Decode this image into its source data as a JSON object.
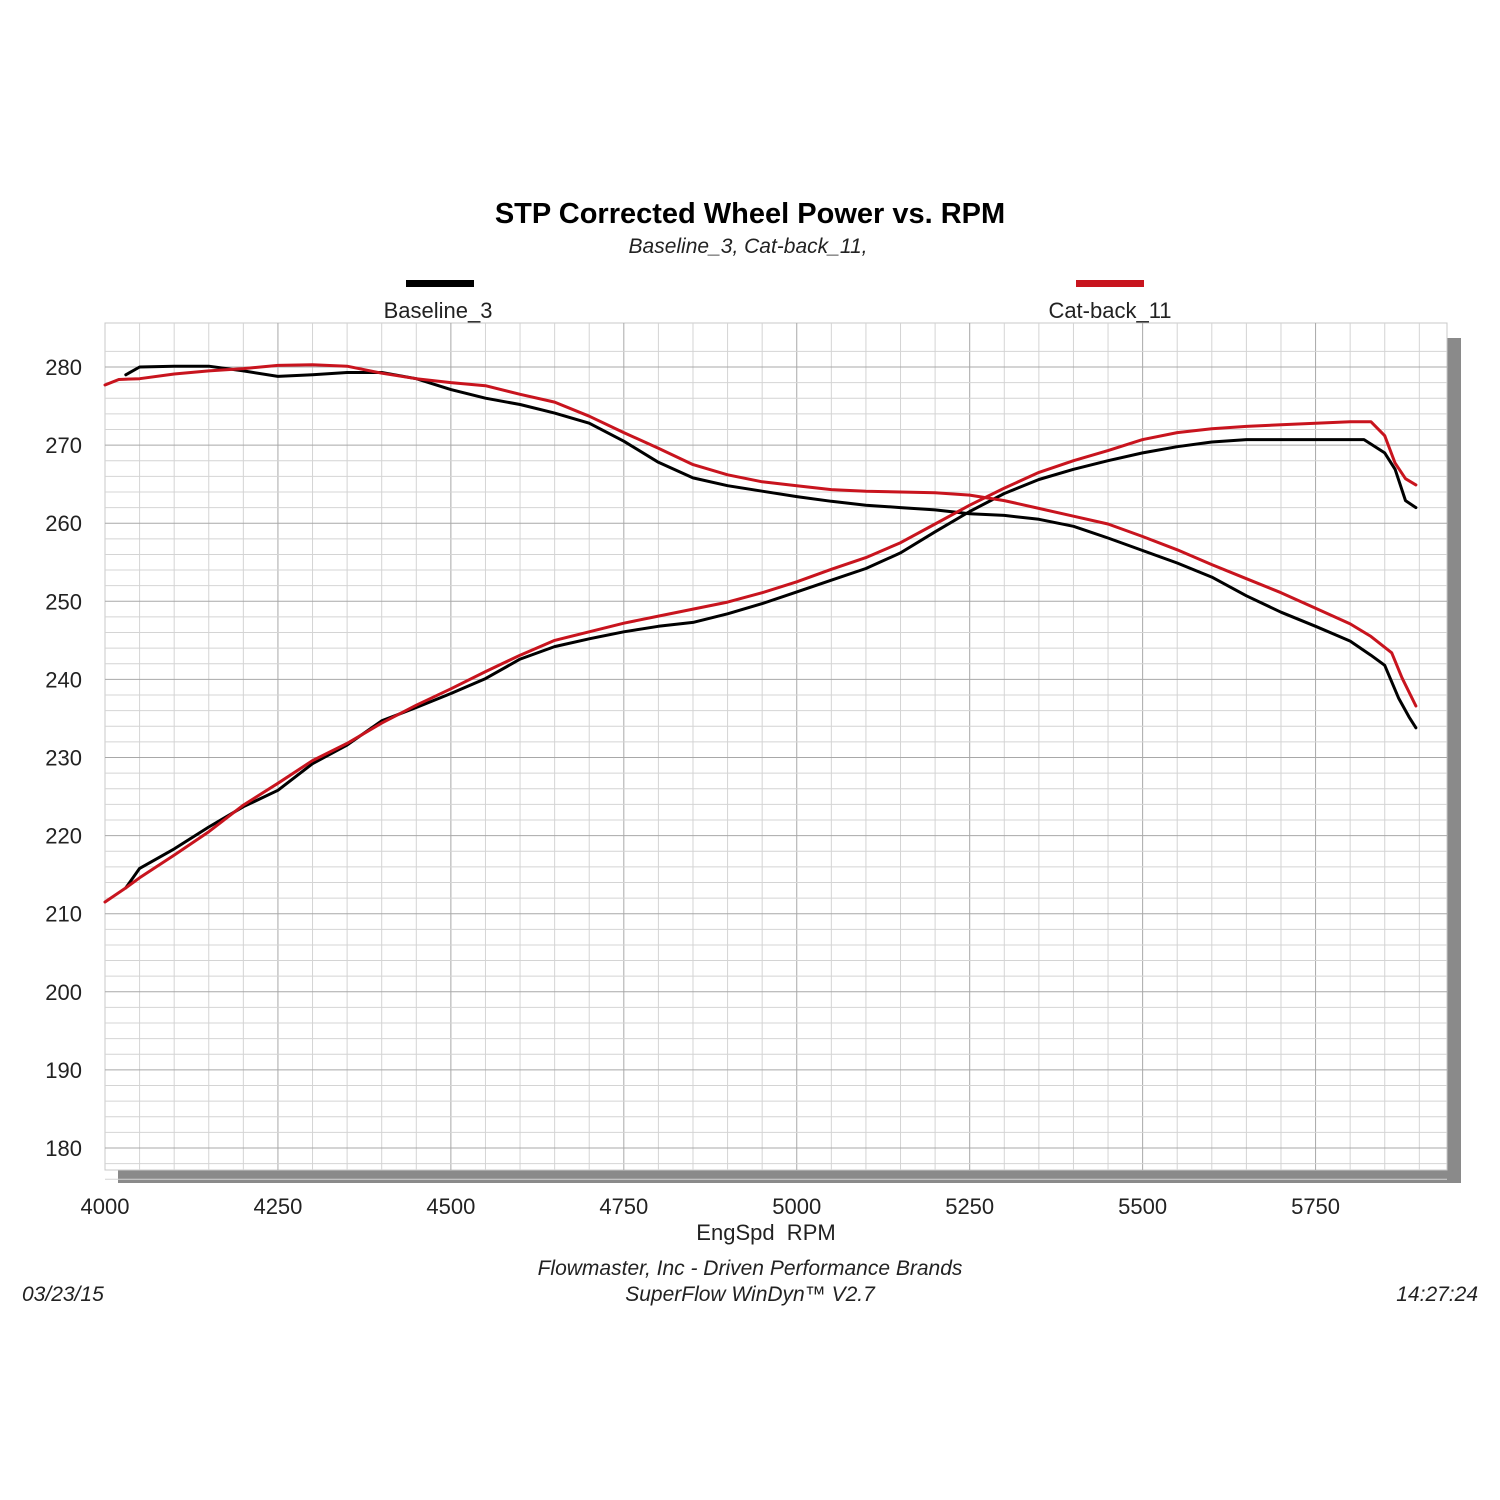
{
  "chart_data": {
    "type": "line",
    "title": "STP Corrected Wheel Power vs. RPM",
    "subtitle": "Baseline_3, Cat-back_11,",
    "xlabel": "EngSpd  RPM",
    "ylabel": "",
    "xlim": [
      4000,
      5940
    ],
    "ylim": [
      176,
      283
    ],
    "x_ticks": [
      "4000",
      "4250",
      "4500",
      "4750",
      "5000",
      "5250",
      "5500",
      "5750"
    ],
    "y_ticks": [
      "180",
      "190",
      "200",
      "210",
      "220",
      "230",
      "240",
      "250",
      "260",
      "270",
      "280"
    ],
    "grid": true,
    "legend_position": "top",
    "series": [
      {
        "name": "Baseline_3",
        "color": "#000000",
        "curves": [
          {
            "label": "power",
            "points": [
              [
                4030,
                213.3
              ],
              [
                4050,
                215.8
              ],
              [
                4100,
                218.3
              ],
              [
                4150,
                221.1
              ],
              [
                4200,
                223.7
              ],
              [
                4250,
                225.8
              ],
              [
                4300,
                229.2
              ],
              [
                4350,
                231.6
              ],
              [
                4400,
                234.7
              ],
              [
                4450,
                236.4
              ],
              [
                4500,
                238.2
              ],
              [
                4550,
                240.1
              ],
              [
                4600,
                242.6
              ],
              [
                4650,
                244.2
              ],
              [
                4700,
                245.2
              ],
              [
                4750,
                246.1
              ],
              [
                4800,
                246.8
              ],
              [
                4850,
                247.3
              ],
              [
                4900,
                248.4
              ],
              [
                4950,
                249.7
              ],
              [
                5000,
                251.2
              ],
              [
                5050,
                252.7
              ],
              [
                5100,
                254.2
              ],
              [
                5150,
                256.2
              ],
              [
                5200,
                258.9
              ],
              [
                5250,
                261.5
              ],
              [
                5300,
                263.8
              ],
              [
                5350,
                265.6
              ],
              [
                5400,
                266.9
              ],
              [
                5450,
                268.0
              ],
              [
                5500,
                269.0
              ],
              [
                5550,
                269.8
              ],
              [
                5600,
                270.4
              ],
              [
                5650,
                270.7
              ],
              [
                5700,
                270.7
              ],
              [
                5750,
                270.7
              ],
              [
                5800,
                270.7
              ],
              [
                5820,
                270.7
              ],
              [
                5850,
                269.0
              ],
              [
                5865,
                266.9
              ],
              [
                5880,
                262.9
              ],
              [
                5895,
                262.0
              ]
            ]
          },
          {
            "label": "torque",
            "points": [
              [
                4030,
                279.0
              ],
              [
                4050,
                280.0
              ],
              [
                4100,
                280.1
              ],
              [
                4150,
                280.1
              ],
              [
                4200,
                279.5
              ],
              [
                4250,
                278.8
              ],
              [
                4300,
                279.0
              ],
              [
                4350,
                279.3
              ],
              [
                4400,
                279.3
              ],
              [
                4450,
                278.5
              ],
              [
                4500,
                277.1
              ],
              [
                4550,
                276.0
              ],
              [
                4600,
                275.2
              ],
              [
                4650,
                274.1
              ],
              [
                4700,
                272.8
              ],
              [
                4750,
                270.5
              ],
              [
                4800,
                267.8
              ],
              [
                4850,
                265.8
              ],
              [
                4900,
                264.8
              ],
              [
                4950,
                264.1
              ],
              [
                5000,
                263.4
              ],
              [
                5050,
                262.8
              ],
              [
                5100,
                262.3
              ],
              [
                5150,
                262.0
              ],
              [
                5200,
                261.7
              ],
              [
                5250,
                261.2
              ],
              [
                5300,
                261.0
              ],
              [
                5350,
                260.5
              ],
              [
                5400,
                259.6
              ],
              [
                5450,
                258.1
              ],
              [
                5500,
                256.5
              ],
              [
                5550,
                254.9
              ],
              [
                5600,
                253.1
              ],
              [
                5650,
                250.7
              ],
              [
                5700,
                248.6
              ],
              [
                5750,
                246.8
              ],
              [
                5800,
                244.9
              ],
              [
                5830,
                243.1
              ],
              [
                5850,
                241.8
              ],
              [
                5870,
                237.6
              ],
              [
                5885,
                235.2
              ],
              [
                5895,
                233.8
              ]
            ]
          }
        ]
      },
      {
        "name": "Cat-back_11",
        "color": "#c8141e",
        "curves": [
          {
            "label": "power",
            "points": [
              [
                4000,
                211.5
              ],
              [
                4030,
                213.3
              ],
              [
                4050,
                214.6
              ],
              [
                4100,
                217.5
              ],
              [
                4150,
                220.5
              ],
              [
                4200,
                223.9
              ],
              [
                4250,
                226.7
              ],
              [
                4300,
                229.6
              ],
              [
                4350,
                231.8
              ],
              [
                4400,
                234.4
              ],
              [
                4450,
                236.7
              ],
              [
                4500,
                238.8
              ],
              [
                4550,
                241.0
              ],
              [
                4600,
                243.1
              ],
              [
                4650,
                245.0
              ],
              [
                4700,
                246.1
              ],
              [
                4750,
                247.2
              ],
              [
                4800,
                248.1
              ],
              [
                4850,
                249.0
              ],
              [
                4900,
                249.9
              ],
              [
                4950,
                251.1
              ],
              [
                5000,
                252.5
              ],
              [
                5050,
                254.1
              ],
              [
                5100,
                255.6
              ],
              [
                5150,
                257.5
              ],
              [
                5200,
                259.9
              ],
              [
                5250,
                262.3
              ],
              [
                5300,
                264.5
              ],
              [
                5350,
                266.5
              ],
              [
                5400,
                268.0
              ],
              [
                5450,
                269.3
              ],
              [
                5500,
                270.7
              ],
              [
                5550,
                271.6
              ],
              [
                5600,
                272.1
              ],
              [
                5650,
                272.4
              ],
              [
                5700,
                272.6
              ],
              [
                5750,
                272.8
              ],
              [
                5800,
                273.0
              ],
              [
                5830,
                273.0
              ],
              [
                5850,
                271.2
              ],
              [
                5865,
                267.7
              ],
              [
                5880,
                265.7
              ],
              [
                5895,
                264.9
              ]
            ]
          },
          {
            "label": "torque",
            "points": [
              [
                4000,
                277.7
              ],
              [
                4020,
                278.4
              ],
              [
                4050,
                278.5
              ],
              [
                4100,
                279.1
              ],
              [
                4150,
                279.5
              ],
              [
                4200,
                279.8
              ],
              [
                4250,
                280.2
              ],
              [
                4300,
                280.3
              ],
              [
                4350,
                280.1
              ],
              [
                4400,
                279.2
              ],
              [
                4450,
                278.5
              ],
              [
                4500,
                278.0
              ],
              [
                4550,
                277.6
              ],
              [
                4600,
                276.5
              ],
              [
                4650,
                275.5
              ],
              [
                4700,
                273.7
              ],
              [
                4750,
                271.6
              ],
              [
                4800,
                269.6
              ],
              [
                4850,
                267.5
              ],
              [
                4900,
                266.2
              ],
              [
                4950,
                265.3
              ],
              [
                5000,
                264.8
              ],
              [
                5050,
                264.3
              ],
              [
                5100,
                264.1
              ],
              [
                5150,
                264.0
              ],
              [
                5200,
                263.9
              ],
              [
                5250,
                263.6
              ],
              [
                5300,
                262.9
              ],
              [
                5350,
                261.9
              ],
              [
                5400,
                260.9
              ],
              [
                5450,
                259.9
              ],
              [
                5500,
                258.3
              ],
              [
                5550,
                256.6
              ],
              [
                5600,
                254.7
              ],
              [
                5650,
                252.9
              ],
              [
                5700,
                251.1
              ],
              [
                5750,
                249.1
              ],
              [
                5800,
                247.1
              ],
              [
                5830,
                245.5
              ],
              [
                5860,
                243.4
              ],
              [
                5875,
                240.2
              ],
              [
                5895,
                236.6
              ]
            ]
          }
        ]
      }
    ]
  },
  "footer": {
    "date": "03/23/15",
    "company": "Flowmaster, Inc - Driven Performance Brands",
    "software": "SuperFlow WinDyn™ V2.7",
    "time": "14:27:24"
  }
}
